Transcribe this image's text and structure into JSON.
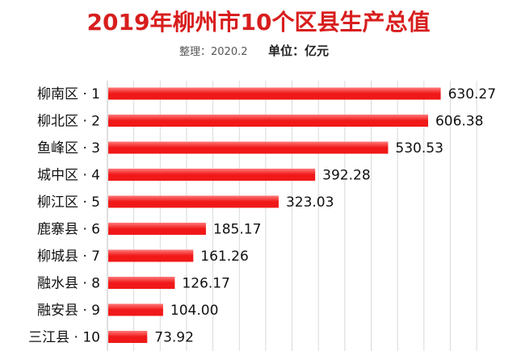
{
  "title": "2019年柳州市10个区县生产总值",
  "subtitle": {
    "note": "整理：2020.2",
    "unit": "单位：亿元"
  },
  "colors": {
    "title": "#d81e1e",
    "bar": "#f01818",
    "bar_highlight": "#ff7a7a",
    "grid": "#d9d9d9"
  },
  "chart_data": {
    "type": "bar",
    "orientation": "horizontal",
    "title": "2019年柳州市10个区县生产总值",
    "unit": "亿元",
    "grid": true,
    "xlim": [
      0,
      700
    ],
    "categories": [
      "柳南区 · 1",
      "柳北区 · 2",
      "鱼峰区 · 3",
      "城中区 · 4",
      "柳江区 · 5",
      "鹿寨县 · 6",
      "柳城县 · 7",
      "融水县 · 8",
      "融安县 · 9",
      "三江县 · 10"
    ],
    "values": [
      630.27,
      606.38,
      530.53,
      392.28,
      323.03,
      185.17,
      161.26,
      126.17,
      104.0,
      73.92
    ],
    "value_labels": [
      "630.27",
      "606.38",
      "530.53",
      "392.28",
      "323.03",
      "185.17",
      "161.26",
      "126.17",
      "104.00",
      "73.92"
    ]
  }
}
